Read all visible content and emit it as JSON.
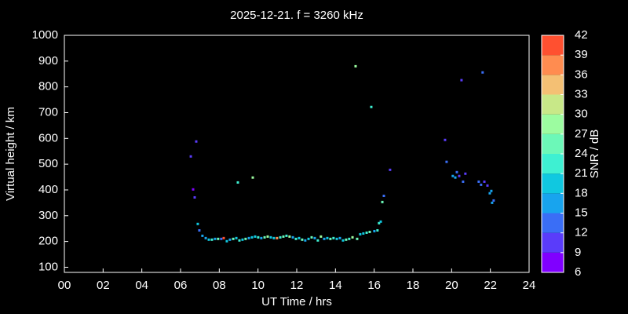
{
  "chart_data": {
    "type": "scatter",
    "title": "2025-12-21. f = 3260 kHz",
    "x_label": "UT Time / hrs",
    "y_label": "Virtual height / km",
    "xlim": [
      0,
      24
    ],
    "ylim": [
      80,
      1000
    ],
    "xticks": [
      {
        "value": 0,
        "label": "00"
      },
      {
        "value": 2,
        "label": "02"
      },
      {
        "value": 4,
        "label": "04"
      },
      {
        "value": 6,
        "label": "06"
      },
      {
        "value": 8,
        "label": "08"
      },
      10,
      12,
      14,
      16,
      18,
      20,
      22,
      24
    ],
    "yticks": [
      100,
      200,
      300,
      400,
      500,
      600,
      700,
      800,
      900,
      1000
    ],
    "colorbar": {
      "label": "SNR / dB",
      "lim": [
        6,
        42
      ],
      "ticks": [
        6,
        9,
        12,
        15,
        18,
        21,
        24,
        27,
        30,
        33,
        36,
        39,
        42
      ],
      "colors": [
        "#8000ff",
        "#5a3cfa",
        "#3a6ef6",
        "#18a4ee",
        "#10c8e0",
        "#3ef0d2",
        "#6cf8b8",
        "#9cfca0",
        "#c8e888",
        "#f4c074",
        "#ff8c50",
        "#ff5030",
        "#ff0000"
      ]
    },
    "series": [
      {
        "x": [
          6.53,
          6.65,
          6.73,
          6.81,
          6.89,
          6.97,
          7.13,
          7.3,
          7.46,
          7.62,
          7.78,
          7.94,
          8.1,
          8.23,
          8.39,
          8.55,
          8.72,
          8.88,
          8.96,
          9.04,
          9.2,
          9.36,
          9.53,
          9.73,
          9.69,
          9.85,
          10.01,
          10.17,
          10.34,
          10.5,
          10.66,
          10.82,
          10.98,
          11.15,
          11.31,
          11.47,
          11.63,
          11.8,
          11.96,
          12.12,
          12.28,
          12.44,
          12.61,
          12.77,
          12.93,
          13.09,
          13.25,
          13.42,
          13.58,
          13.74,
          13.9,
          14.07,
          14.23,
          14.39,
          14.55,
          14.71,
          14.88,
          15.04,
          15.12,
          15.28,
          15.44,
          15.61,
          15.77,
          15.85,
          16.01,
          16.17,
          16.25,
          16.34,
          16.42,
          16.5,
          16.82,
          19.66,
          19.74,
          20.06,
          20.19,
          20.27,
          20.39,
          20.51,
          20.59,
          20.71,
          21.4,
          21.52,
          21.6,
          21.69,
          21.85,
          21.97,
          22.05,
          22.09,
          22.17
        ],
        "values": [
          530,
          402,
          371,
          588,
          268,
          243,
          222,
          213,
          207,
          207,
          210,
          210,
          210,
          213,
          201,
          207,
          210,
          213,
          429,
          204,
          207,
          210,
          213,
          448,
          216,
          219,
          216,
          213,
          216,
          219,
          216,
          213,
          213,
          216,
          219,
          222,
          219,
          216,
          210,
          213,
          207,
          204,
          210,
          216,
          213,
          204,
          219,
          210,
          213,
          210,
          213,
          210,
          213,
          204,
          207,
          210,
          216,
          880,
          210,
          228,
          231,
          234,
          237,
          722,
          240,
          243,
          271,
          277,
          353,
          377,
          478,
          594,
          509,
          454,
          448,
          469,
          454,
          826,
          432,
          463,
          432,
          420,
          856,
          432,
          417,
          387,
          396,
          350,
          359
        ],
        "snr": [
          9,
          8,
          11,
          9,
          20,
          14,
          15,
          16,
          18,
          21,
          17,
          24,
          12,
          40,
          20,
          15,
          24,
          18,
          22,
          21,
          18,
          24,
          16,
          27,
          20,
          18,
          21,
          15,
          24,
          27,
          20,
          18,
          38,
          22,
          24,
          21,
          27,
          16,
          21,
          18,
          24,
          15,
          20,
          24,
          16,
          22,
          27,
          16,
          20,
          24,
          21,
          18,
          15,
          20,
          24,
          21,
          27,
          27,
          24,
          20,
          18,
          22,
          24,
          21,
          17,
          21,
          22,
          20,
          25,
          14,
          10,
          10,
          12,
          16,
          15,
          14,
          11,
          11,
          12,
          10,
          12,
          13,
          14,
          11,
          10,
          17,
          16,
          15,
          12
        ]
      }
    ]
  }
}
